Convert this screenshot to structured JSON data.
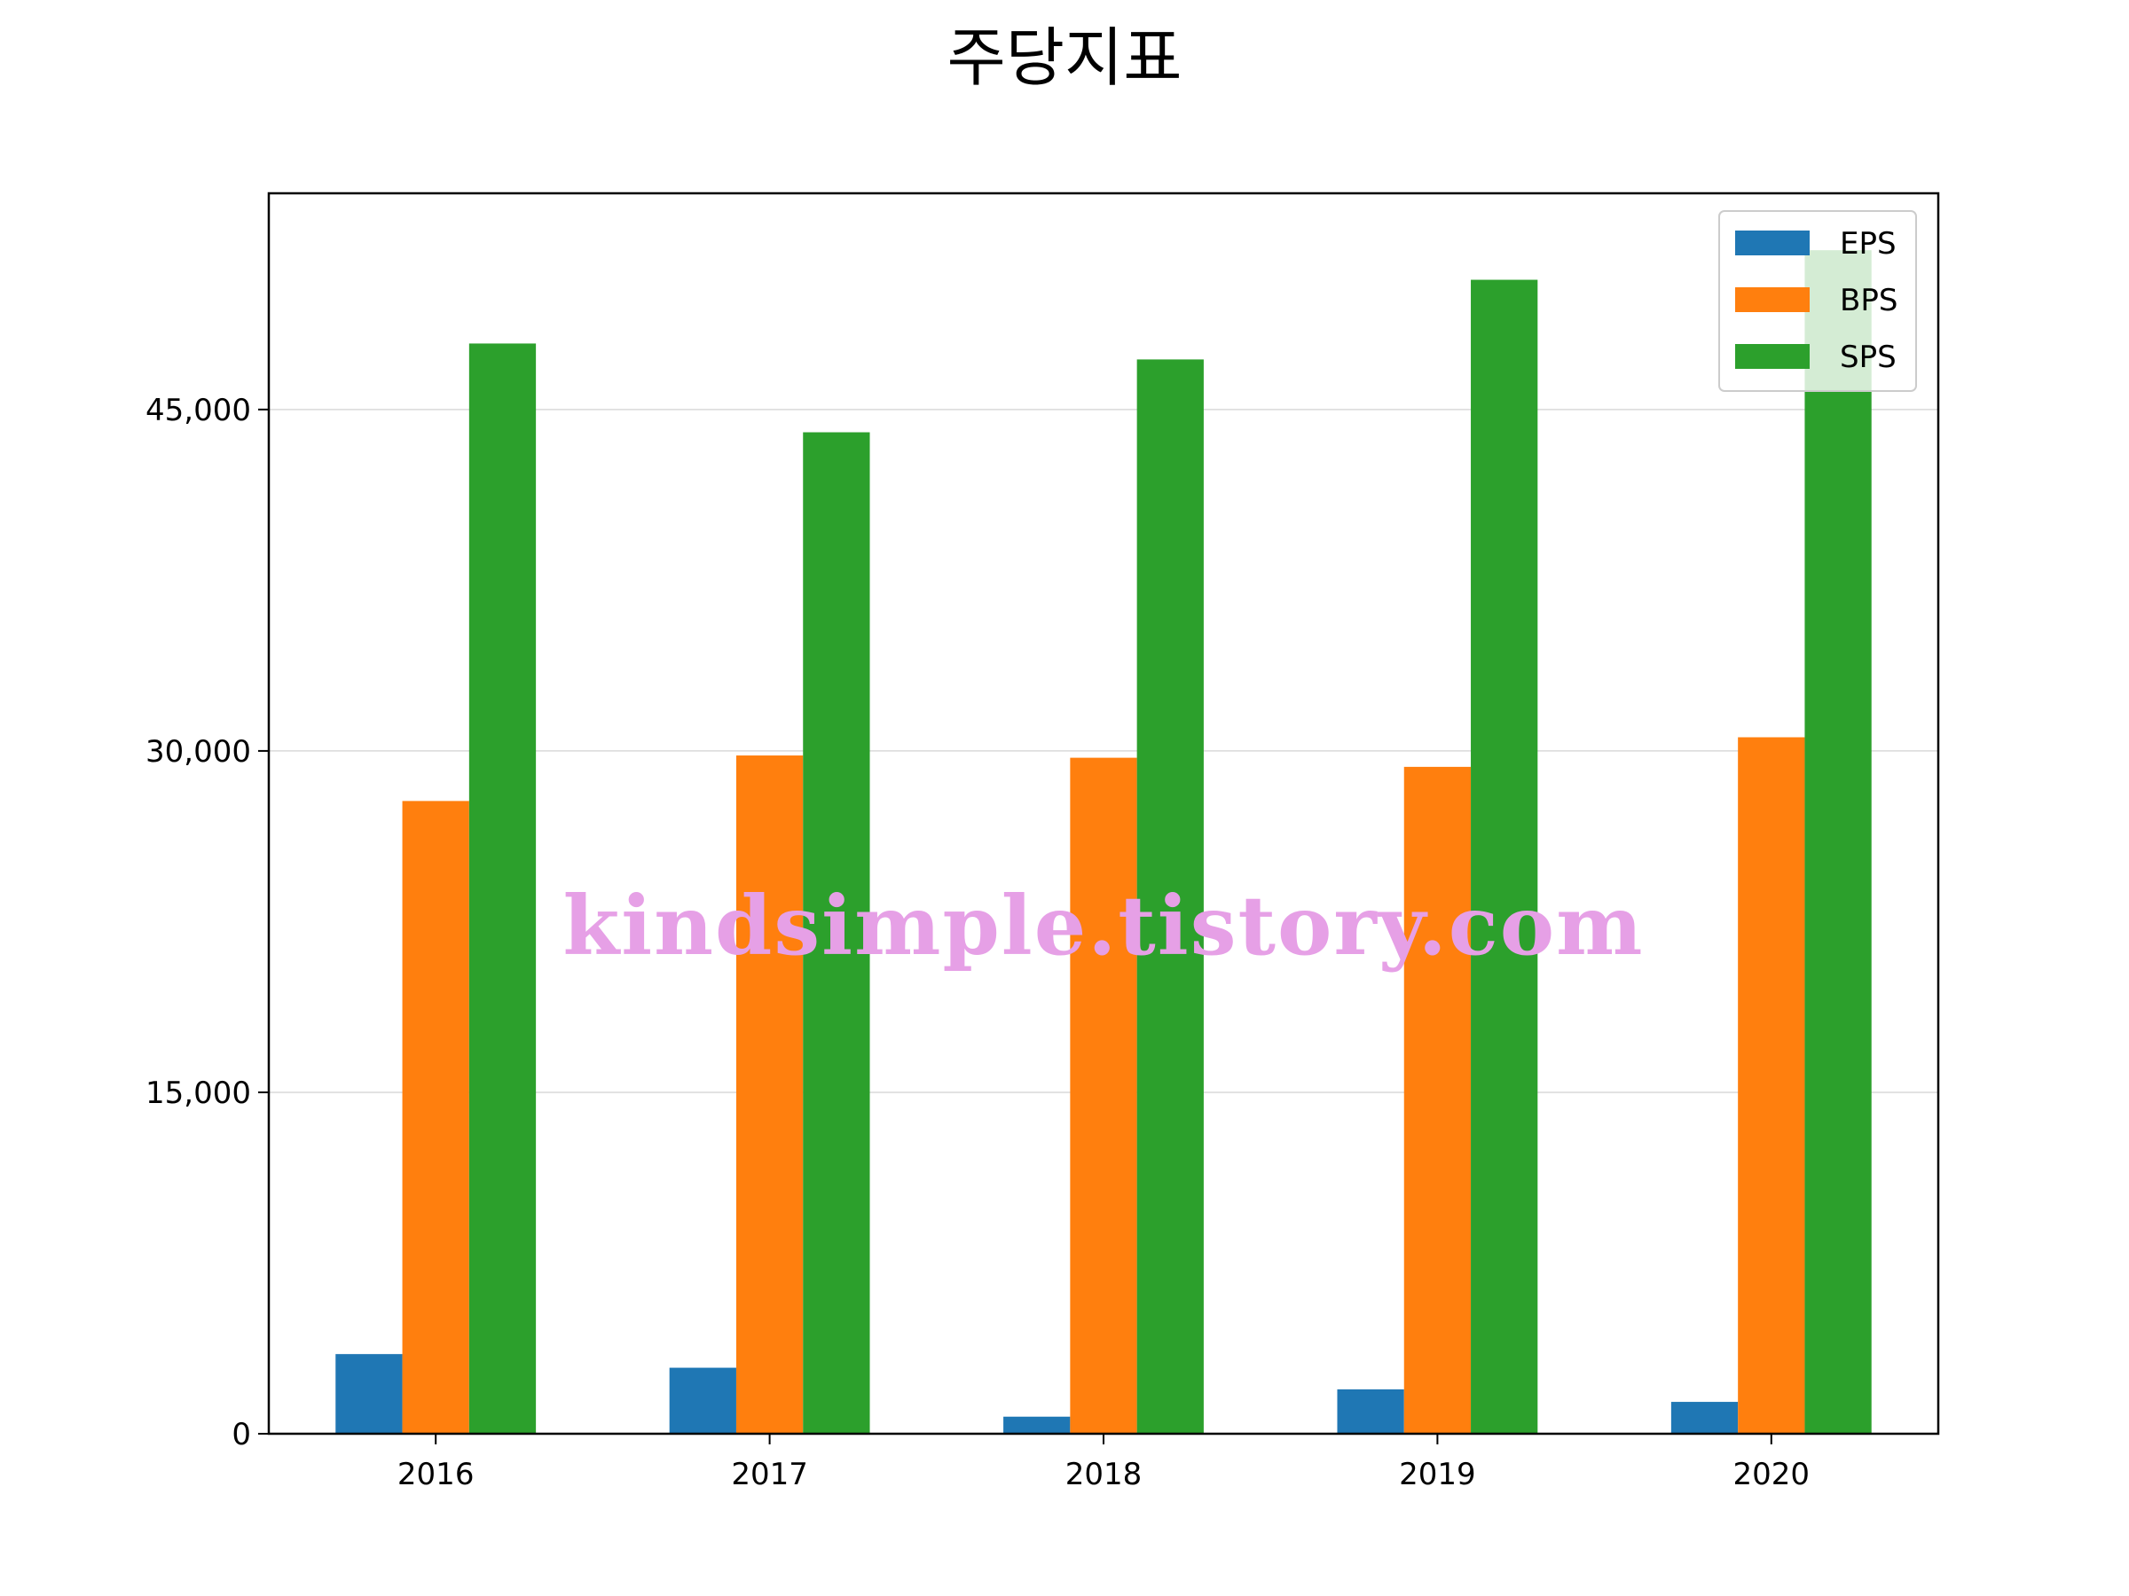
{
  "chart_data": {
    "type": "bar",
    "title": "주당지표",
    "xlabel": "",
    "ylabel": "",
    "categories": [
      "2016",
      "2017",
      "2018",
      "2019",
      "2020"
    ],
    "series": [
      {
        "name": "EPS",
        "color": "#1f77b4",
        "values": [
          3500,
          2900,
          750,
          1950,
          1400
        ]
      },
      {
        "name": "BPS",
        "color": "#ff7f0e",
        "values": [
          27800,
          29800,
          29700,
          29300,
          30600
        ]
      },
      {
        "name": "SPS",
        "color": "#2ca02c",
        "values": [
          47900,
          44000,
          47200,
          50700,
          52000
        ]
      }
    ],
    "ylim": [
      0,
      54500
    ],
    "yticks": [
      0,
      15000,
      30000,
      45000
    ],
    "ytick_labels": [
      "0",
      "15,000",
      "30,000",
      "45,000"
    ],
    "grid": "horizontal",
    "legend_position": "top-right"
  },
  "watermark": {
    "text": "kindsimple.tistory.com",
    "color": "#e6a0e6"
  }
}
